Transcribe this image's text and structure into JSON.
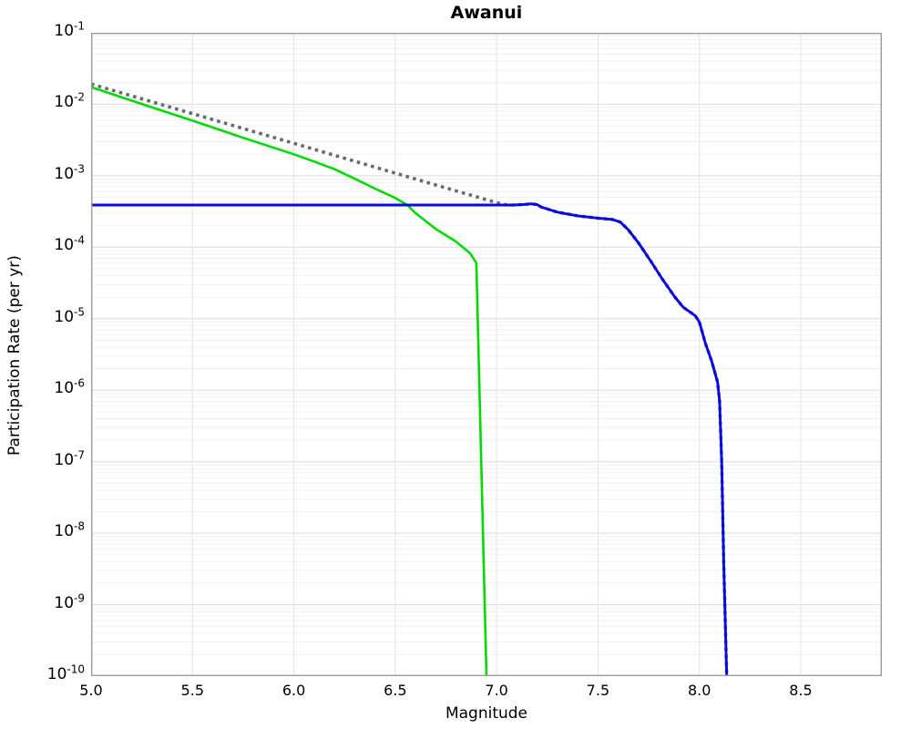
{
  "chart_data": {
    "type": "line",
    "title": "Awanui",
    "xlabel": "Magnitude",
    "ylabel": "Participation Rate (per yr)",
    "xlim": [
      5.0,
      8.9
    ],
    "ylim": [
      1e-10,
      0.1
    ],
    "y_top_exp": -1,
    "y_bottom_exp": -10,
    "y_axis_scale": "log",
    "grid": true,
    "legend": "none",
    "y_tick_base": "10",
    "y_ticks": [
      {
        "exp": "-1"
      },
      {
        "exp": "-2"
      },
      {
        "exp": "-3"
      },
      {
        "exp": "-4"
      },
      {
        "exp": "-5"
      },
      {
        "exp": "-6"
      },
      {
        "exp": "-7"
      },
      {
        "exp": "-8"
      },
      {
        "exp": "-9"
      },
      {
        "exp": "-10"
      }
    ],
    "x_ticks": [
      {
        "value": 5.0,
        "label": "5.0"
      },
      {
        "value": 5.5,
        "label": "5.5"
      },
      {
        "value": 6.0,
        "label": "6.0"
      },
      {
        "value": 6.5,
        "label": "6.5"
      },
      {
        "value": 7.0,
        "label": "7.0"
      },
      {
        "value": 7.5,
        "label": "7.5"
      },
      {
        "value": 8.0,
        "label": "8.0"
      },
      {
        "value": 8.5,
        "label": "8.5"
      }
    ],
    "grid_colors": {
      "minor": "#f1f1f1",
      "major": "#dbdbdb",
      "vertical": "#e4e4e4"
    },
    "frame_color": "#9c9c9c",
    "dash_pattern": "3.6 4.4",
    "series": [
      {
        "name": "green-solid",
        "style": "solid",
        "color": "#00dc00",
        "width": 2.6,
        "points": [
          [
            5.0,
            0.0174
          ],
          [
            5.25,
            0.0101
          ],
          [
            5.5,
            0.0059
          ],
          [
            5.75,
            0.0034
          ],
          [
            6.0,
            0.002
          ],
          [
            6.1,
            0.00158
          ],
          [
            6.2,
            0.00124
          ],
          [
            6.3,
            0.00091
          ],
          [
            6.4,
            0.00066
          ],
          [
            6.5,
            0.00049
          ],
          [
            6.56,
            0.00039
          ],
          [
            6.6,
            0.0003
          ],
          [
            6.7,
            0.00018
          ],
          [
            6.8,
            0.00012
          ],
          [
            6.87,
            8.2e-05
          ],
          [
            6.9,
            6e-05
          ],
          [
            6.95,
            1e-10
          ]
        ]
      },
      {
        "name": "gray-dotted",
        "style": "dotted",
        "color": "#6a6a6a",
        "width": 3.6,
        "points": [
          [
            5.0,
            0.0192
          ],
          [
            5.5,
            0.0074
          ],
          [
            6.0,
            0.00284
          ],
          [
            6.5,
            0.00109
          ],
          [
            7.0,
            0.00042
          ],
          [
            7.05,
            0.00039
          ],
          [
            7.08,
            0.00039
          ],
          [
            7.13,
            0.000395
          ],
          [
            7.17,
            0.000405
          ],
          [
            7.2,
            0.000395
          ],
          [
            7.22,
            0.000365
          ],
          [
            7.3,
            0.00031
          ],
          [
            7.4,
            0.000275
          ],
          [
            7.5,
            0.000255
          ],
          [
            7.57,
            0.000245
          ],
          [
            7.61,
            0.000225
          ],
          [
            7.65,
            0.000175
          ],
          [
            7.7,
            0.000115
          ],
          [
            7.76,
            6.4e-05
          ],
          [
            7.82,
            3.5e-05
          ],
          [
            7.88,
            2e-05
          ],
          [
            7.92,
            1.45e-05
          ],
          [
            7.98,
            1.1e-05
          ],
          [
            8.0,
            9e-06
          ],
          [
            8.03,
            4.5e-06
          ],
          [
            8.06,
            2.6e-06
          ],
          [
            8.09,
            1.3e-06
          ],
          [
            8.1,
            7e-07
          ],
          [
            8.11,
            1e-07
          ],
          [
            8.12,
            4e-09
          ],
          [
            8.135,
            1e-10
          ]
        ]
      },
      {
        "name": "blue-solid",
        "style": "solid",
        "color": "#0909e2",
        "width": 2.9,
        "points": [
          [
            5.0,
            0.00039
          ],
          [
            7.0,
            0.00039
          ],
          [
            7.08,
            0.00039
          ],
          [
            7.13,
            0.000395
          ],
          [
            7.17,
            0.000405
          ],
          [
            7.2,
            0.000395
          ],
          [
            7.22,
            0.000365
          ],
          [
            7.3,
            0.00031
          ],
          [
            7.4,
            0.000275
          ],
          [
            7.5,
            0.000255
          ],
          [
            7.57,
            0.000245
          ],
          [
            7.61,
            0.000225
          ],
          [
            7.65,
            0.000175
          ],
          [
            7.7,
            0.000115
          ],
          [
            7.76,
            6.4e-05
          ],
          [
            7.82,
            3.5e-05
          ],
          [
            7.88,
            2e-05
          ],
          [
            7.92,
            1.45e-05
          ],
          [
            7.98,
            1.1e-05
          ],
          [
            8.0,
            9e-06
          ],
          [
            8.03,
            4.5e-06
          ],
          [
            8.06,
            2.6e-06
          ],
          [
            8.09,
            1.3e-06
          ],
          [
            8.1,
            7e-07
          ],
          [
            8.11,
            1e-07
          ],
          [
            8.12,
            4e-09
          ],
          [
            8.135,
            1e-10
          ]
        ]
      }
    ]
  }
}
